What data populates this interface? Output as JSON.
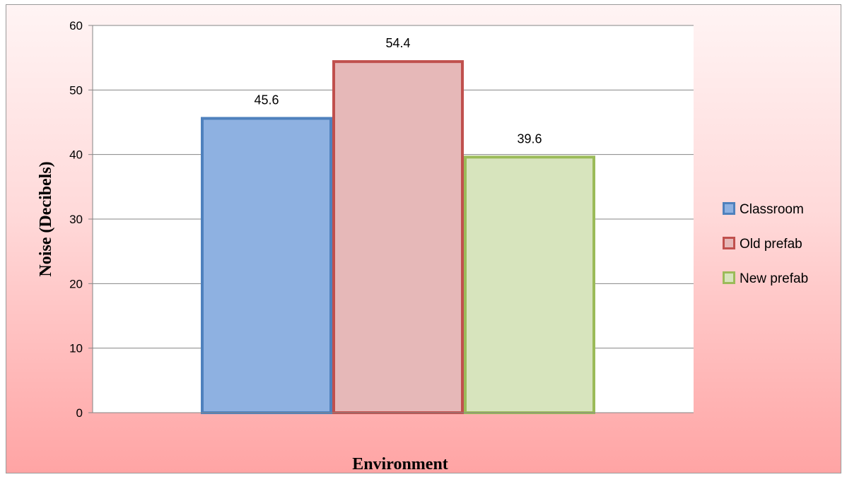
{
  "chart_data": {
    "type": "bar",
    "title": "",
    "xlabel": "Environment",
    "ylabel": "Noise (Decibels)",
    "ylim": [
      0,
      60
    ],
    "yticks": [
      0,
      10,
      20,
      30,
      40,
      50,
      60
    ],
    "grid": true,
    "legend_position": "right",
    "series": [
      {
        "name": "Classroom",
        "values": [
          45.6
        ],
        "label": "45.6",
        "fill": "#8eb1e1",
        "stroke": "#4f81bd"
      },
      {
        "name": "Old prefab",
        "values": [
          54.4
        ],
        "label": "54.4",
        "fill": "#e6b8b8",
        "stroke": "#c0504d"
      },
      {
        "name": "New prefab",
        "values": [
          39.6
        ],
        "label": "39.6",
        "fill": "#d7e4bd",
        "stroke": "#9bbb59"
      }
    ]
  }
}
